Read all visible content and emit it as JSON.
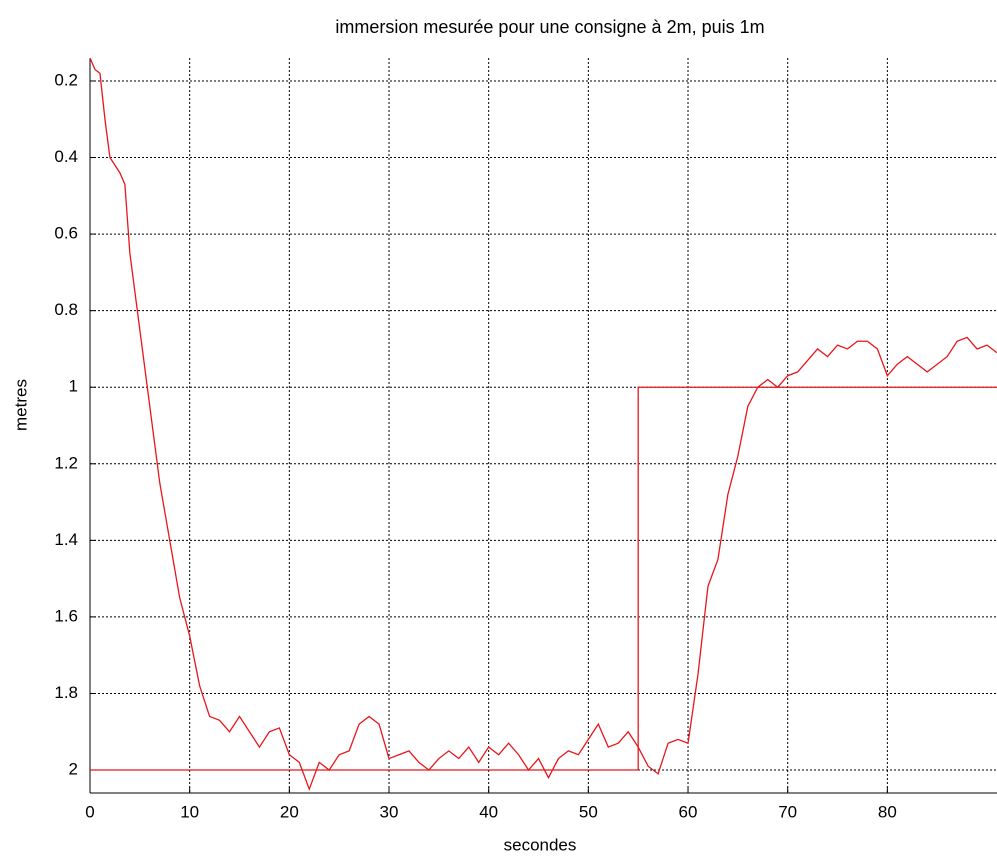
{
  "chart_data": {
    "type": "line",
    "title": "immersion mesurée pour une consigne à 2m, puis 1m",
    "xlabel": "secondes",
    "ylabel": "metres",
    "xlim": [
      0,
      91
    ],
    "xticks": [
      0,
      10,
      20,
      30,
      40,
      50,
      60,
      70,
      80
    ],
    "ylim": [
      0.14,
      2.06
    ],
    "y_inverted": true,
    "yticks": [
      0.2,
      0.4,
      0.6,
      0.8,
      1,
      1.2,
      1.4,
      1.6,
      1.8,
      2
    ],
    "grid": true,
    "series": [
      {
        "color": "#e8161b",
        "x": [
          0,
          0.5,
          1,
          1.5,
          2,
          3,
          3.5,
          4,
          5,
          6,
          7,
          8,
          9,
          10,
          11,
          12,
          13,
          14,
          15,
          16,
          17,
          18,
          19,
          20,
          21,
          22,
          23,
          24,
          25,
          26,
          27,
          28,
          29,
          30,
          31,
          32,
          33,
          34,
          35,
          36,
          37,
          38,
          39,
          40,
          41,
          42,
          43,
          44,
          45,
          46,
          47,
          48,
          49,
          50,
          51,
          52,
          53,
          54,
          55,
          56,
          57,
          58,
          59,
          60,
          61,
          62,
          63,
          64,
          65,
          66,
          67,
          68,
          69,
          70,
          71,
          72,
          73,
          74,
          75,
          76,
          77,
          78,
          79,
          80,
          81,
          82,
          83,
          84,
          85,
          86,
          87,
          88,
          89,
          90,
          91
        ],
        "values": [
          0.14,
          0.17,
          0.18,
          0.3,
          0.4,
          0.44,
          0.47,
          0.65,
          0.85,
          1.05,
          1.25,
          1.4,
          1.55,
          1.65,
          1.78,
          1.86,
          1.87,
          1.9,
          1.86,
          1.9,
          1.94,
          1.9,
          1.89,
          1.96,
          1.98,
          2.05,
          1.98,
          2.0,
          1.96,
          1.95,
          1.88,
          1.86,
          1.88,
          1.97,
          1.96,
          1.95,
          1.98,
          2.0,
          1.97,
          1.95,
          1.97,
          1.94,
          1.98,
          1.94,
          1.96,
          1.93,
          1.96,
          2.0,
          1.97,
          2.02,
          1.97,
          1.95,
          1.96,
          1.92,
          1.88,
          1.94,
          1.93,
          1.9,
          1.94,
          1.99,
          2.01,
          1.93,
          1.92,
          1.93,
          1.75,
          1.52,
          1.45,
          1.28,
          1.18,
          1.05,
          1.0,
          0.98,
          1.0,
          0.97,
          0.96,
          0.93,
          0.9,
          0.92,
          0.89,
          0.9,
          0.88,
          0.88,
          0.9,
          0.97,
          0.94,
          0.92,
          0.94,
          0.96,
          0.94,
          0.92,
          0.88,
          0.87,
          0.9,
          0.89,
          0.91
        ]
      },
      {
        "color": "#e8161b",
        "x": [
          0,
          55,
          55,
          91
        ],
        "values": [
          2,
          2,
          1,
          1
        ]
      }
    ]
  }
}
